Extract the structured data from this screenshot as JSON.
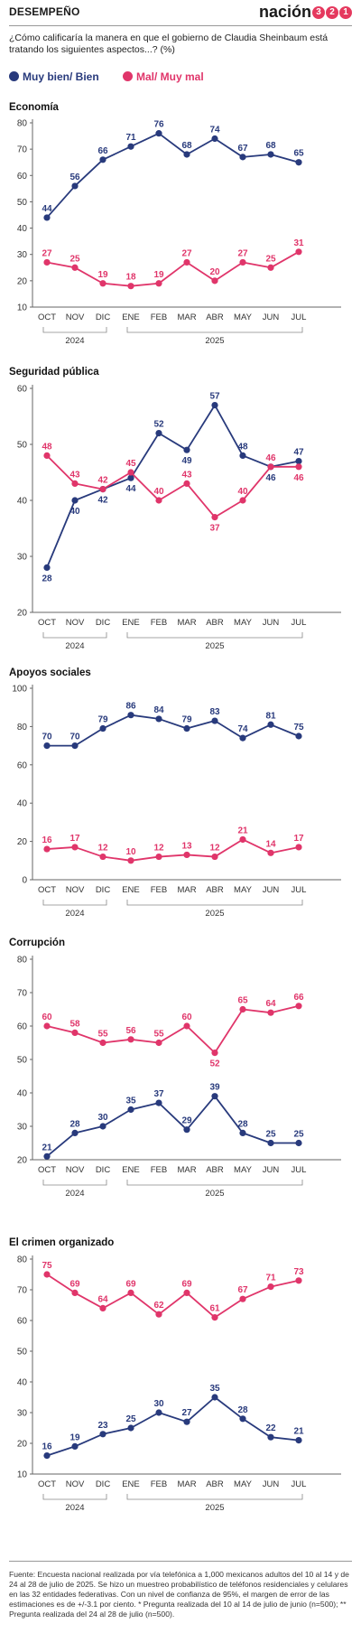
{
  "header": {
    "section": "DESEMPEÑO",
    "brand_word": "nación",
    "brand_digits": [
      "3",
      "2",
      "1"
    ]
  },
  "question": "¿Cómo calificaría la manera en que el gobierno de Claudia Sheinbaum está tratando los siguientes aspectos...? (%)",
  "legend": [
    {
      "label": "Muy bien/ Bien",
      "color": "#283a7c"
    },
    {
      "label": "Mal/ Muy mal",
      "color": "#e0356a"
    }
  ],
  "colors": {
    "good": "#283a7c",
    "bad": "#e0356a",
    "axis": "#666666",
    "grid": "#e5e5e5"
  },
  "months": [
    "OCT",
    "NOV",
    "DIC",
    "ENE",
    "FEB",
    "MAR",
    "ABR",
    "MAY",
    "JUN",
    "JUL"
  ],
  "years": [
    {
      "label": "2024"
    },
    {
      "label": "2025"
    }
  ],
  "chart_data": [
    {
      "type": "line",
      "title": "Economía",
      "categories": [
        "OCT",
        "NOV",
        "DIC",
        "ENE",
        "FEB",
        "MAR",
        "ABR",
        "MAY",
        "JUN",
        "JUL"
      ],
      "ylim": [
        10,
        80
      ],
      "yticks": [
        10,
        20,
        30,
        40,
        50,
        60,
        70,
        80
      ],
      "grid": false,
      "series": [
        {
          "name": "Muy bien/ Bien",
          "values": [
            44,
            56,
            66,
            71,
            76,
            68,
            74,
            67,
            68,
            65
          ]
        },
        {
          "name": "Mal/ Muy mal",
          "values": [
            27,
            25,
            19,
            18,
            19,
            27,
            20,
            27,
            25,
            31
          ]
        }
      ]
    },
    {
      "type": "line",
      "title": "Seguridad pública",
      "categories": [
        "OCT",
        "NOV",
        "DIC",
        "ENE",
        "FEB",
        "MAR",
        "ABR",
        "MAY",
        "JUN",
        "JUL"
      ],
      "ylim": [
        20,
        60
      ],
      "yticks": [
        20,
        30,
        40,
        50,
        60
      ],
      "grid": false,
      "series": [
        {
          "name": "Muy bien/ Bien",
          "values": [
            28,
            40,
            42,
            44,
            52,
            49,
            57,
            48,
            46,
            47
          ]
        },
        {
          "name": "Mal/ Muy mal",
          "values": [
            48,
            43,
            42,
            45,
            40,
            43,
            37,
            40,
            46,
            46
          ]
        }
      ]
    },
    {
      "type": "line",
      "title": "Apoyos sociales",
      "categories": [
        "OCT",
        "NOV",
        "DIC",
        "ENE",
        "FEB",
        "MAR",
        "ABR",
        "MAY",
        "JUN",
        "JUL"
      ],
      "ylim": [
        0,
        100
      ],
      "yticks": [
        0,
        20,
        40,
        60,
        80,
        100
      ],
      "grid": false,
      "series": [
        {
          "name": "Muy bien/ Bien",
          "values": [
            70,
            70,
            79,
            86,
            84,
            79,
            83,
            74,
            81,
            75
          ]
        },
        {
          "name": "Mal/ Muy mal",
          "values": [
            16,
            17,
            12,
            10,
            12,
            13,
            12,
            21,
            14,
            17
          ]
        }
      ]
    },
    {
      "type": "line",
      "title": "Corrupción",
      "categories": [
        "OCT",
        "NOV",
        "DIC",
        "ENE",
        "FEB",
        "MAR",
        "ABR",
        "MAY",
        "JUN",
        "JUL"
      ],
      "ylim": [
        20,
        80
      ],
      "yticks": [
        20,
        30,
        40,
        50,
        60,
        70,
        80
      ],
      "grid": false,
      "series": [
        {
          "name": "Muy bien/ Bien",
          "values": [
            21,
            28,
            30,
            35,
            37,
            29,
            39,
            28,
            25,
            25
          ]
        },
        {
          "name": "Mal/ Muy mal",
          "values": [
            60,
            58,
            55,
            56,
            55,
            60,
            52,
            65,
            64,
            66
          ]
        }
      ]
    },
    {
      "type": "line",
      "title": "El crimen organizado",
      "categories": [
        "OCT",
        "NOV",
        "DIC",
        "ENE",
        "FEB",
        "MAR",
        "ABR",
        "MAY",
        "JUN",
        "JUL"
      ],
      "ylim": [
        10,
        80
      ],
      "yticks": [
        10,
        20,
        30,
        40,
        50,
        60,
        70,
        80
      ],
      "grid": false,
      "series": [
        {
          "name": "Muy bien/ Bien",
          "values": [
            16,
            19,
            23,
            25,
            30,
            27,
            35,
            28,
            22,
            21
          ]
        },
        {
          "name": "Mal/ Muy mal",
          "values": [
            75,
            69,
            64,
            69,
            62,
            69,
            61,
            67,
            71,
            73
          ]
        }
      ]
    }
  ],
  "footer": "Fuente: Encuesta nacional realizada por vía telefónica a 1,000 mexicanos adultos del 10 al 14 y de 24 al 28 de julio de 2025. Se hizo un muestreo probabilístico de teléfonos residenciales y celulares en las 32 entidades federativas. Con un nivel de confianza de 95%, el margen de error de las estimaciones es de +/-3.1 por ciento. * Pregunta realizada del 10 al 14 de julio de junio (n=500); ** Pregunta realizada del 24 al 28 de julio (n=500)."
}
